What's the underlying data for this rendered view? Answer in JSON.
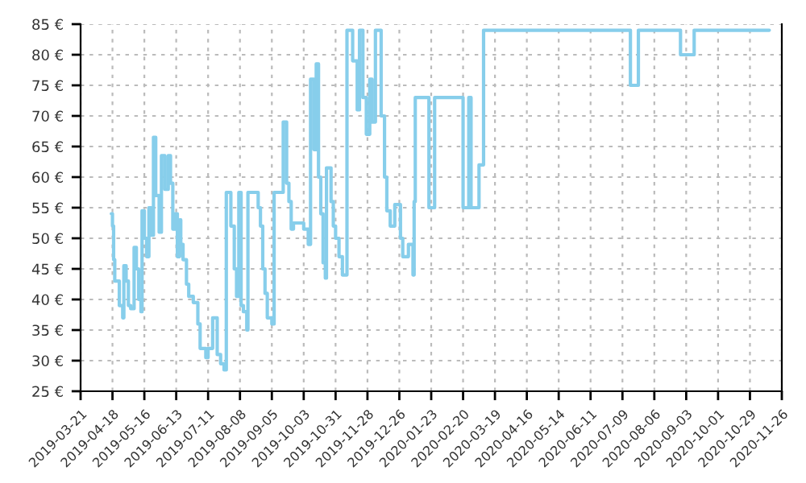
{
  "chart_data": {
    "type": "step",
    "x": [
      "2019-04-17",
      "2019-04-18",
      "2019-04-19",
      "2019-04-20",
      "2019-04-22",
      "2019-04-24",
      "2019-04-27",
      "2019-04-28",
      "2019-04-30",
      "2019-05-02",
      "2019-05-04",
      "2019-05-07",
      "2019-05-09",
      "2019-05-11",
      "2019-05-13",
      "2019-05-14",
      "2019-05-16",
      "2019-05-18",
      "2019-05-20",
      "2019-05-22",
      "2019-05-24",
      "2019-05-26",
      "2019-05-29",
      "2019-05-31",
      "2019-06-03",
      "2019-06-06",
      "2019-06-08",
      "2019-06-10",
      "2019-06-12",
      "2019-06-14",
      "2019-06-16",
      "2019-06-17",
      "2019-06-19",
      "2019-06-22",
      "2019-06-24",
      "2019-06-28",
      "2019-07-02",
      "2019-07-04",
      "2019-07-09",
      "2019-07-11",
      "2019-07-15",
      "2019-07-19",
      "2019-07-22",
      "2019-07-25",
      "2019-07-27",
      "2019-07-31",
      "2019-08-03",
      "2019-08-05",
      "2019-08-07",
      "2019-08-09",
      "2019-08-11",
      "2019-08-14",
      "2019-08-15",
      "2019-08-24",
      "2019-08-26",
      "2019-08-28",
      "2019-08-30",
      "2019-09-01",
      "2019-09-05",
      "2019-09-07",
      "2019-09-15",
      "2019-09-18",
      "2019-09-20",
      "2019-09-22",
      "2019-09-24",
      "2019-10-03",
      "2019-10-07",
      "2019-10-09",
      "2019-10-12",
      "2019-10-14",
      "2019-10-16",
      "2019-10-18",
      "2019-10-20",
      "2019-10-22",
      "2019-10-23",
      "2019-10-27",
      "2019-10-29",
      "2019-10-31",
      "2019-11-03",
      "2019-11-06",
      "2019-11-10",
      "2019-11-15",
      "2019-11-19",
      "2019-11-21",
      "2019-11-24",
      "2019-11-27",
      "2019-11-30",
      "2019-12-02",
      "2019-12-05",
      "2019-12-10",
      "2019-12-13",
      "2019-12-15",
      "2019-12-18",
      "2019-12-22",
      "2019-12-27",
      "2019-12-29",
      "2020-01-03",
      "2020-01-07",
      "2020-01-08",
      "2020-01-09",
      "2020-01-21",
      "2020-01-26",
      "2020-02-20",
      "2020-02-25",
      "2020-02-27",
      "2020-03-05",
      "2020-03-09",
      "2020-07-16",
      "2020-07-23",
      "2020-08-29",
      "2020-09-10",
      "2020-11-15"
    ],
    "series": [
      {
        "color": "#87ceeb",
        "values": [
          54,
          52,
          46.5,
          43,
          43,
          39,
          37,
          45.5,
          43,
          39,
          38.5,
          48.5,
          45,
          40,
          38,
          54.5,
          50,
          47,
          55,
          50.5,
          66.5,
          57,
          51,
          63.5,
          58,
          63.5,
          59,
          51.5,
          54,
          47,
          53,
          49,
          46.5,
          42.5,
          40.5,
          39.5,
          36,
          32,
          30.5,
          32,
          37,
          31,
          29.5,
          28.5,
          57.5,
          52,
          45,
          40.5,
          57.5,
          39,
          38,
          35,
          57.5,
          55,
          52,
          45,
          41,
          37,
          36,
          57.5,
          69,
          59,
          56,
          51.5,
          52.5,
          51.5,
          49,
          76,
          64.5,
          78.5,
          60,
          54,
          46,
          43.5,
          61.5,
          56,
          52,
          50,
          47,
          44,
          84,
          79,
          71,
          84,
          73,
          67,
          76,
          69,
          84,
          70,
          60,
          54.5,
          52,
          55.5,
          50,
          47,
          49,
          44,
          56,
          73,
          55,
          73,
          55,
          73,
          55,
          62,
          84,
          75,
          84,
          80,
          84,
          84
        ]
      }
    ],
    "xlim": [
      "2019-03-21",
      "2020-11-26"
    ],
    "xticks": [
      "2019-03-21",
      "2019-04-18",
      "2019-05-16",
      "2019-06-13",
      "2019-07-11",
      "2019-08-08",
      "2019-09-05",
      "2019-10-03",
      "2019-10-31",
      "2019-11-28",
      "2019-12-26",
      "2020-01-23",
      "2020-02-20",
      "2020-03-19",
      "2020-04-16",
      "2020-05-14",
      "2020-06-11",
      "2020-07-09",
      "2020-08-06",
      "2020-09-03",
      "2020-10-01",
      "2020-10-29",
      "2020-11-26"
    ],
    "ylim": [
      25,
      85
    ],
    "yticks": [
      {
        "value": 25,
        "label": "25 €"
      },
      {
        "value": 30,
        "label": "30 €"
      },
      {
        "value": 35,
        "label": "35 €"
      },
      {
        "value": 40,
        "label": "40 €"
      },
      {
        "value": 45,
        "label": "45 €"
      },
      {
        "value": 50,
        "label": "50 €"
      },
      {
        "value": 55,
        "label": "55 €"
      },
      {
        "value": 60,
        "label": "60 €"
      },
      {
        "value": 65,
        "label": "65 €"
      },
      {
        "value": 70,
        "label": "70 €"
      },
      {
        "value": 75,
        "label": "75 €"
      },
      {
        "value": 80,
        "label": "80 €"
      },
      {
        "value": 85,
        "label": "85 €"
      }
    ],
    "grid": true,
    "line_style": "solid"
  }
}
